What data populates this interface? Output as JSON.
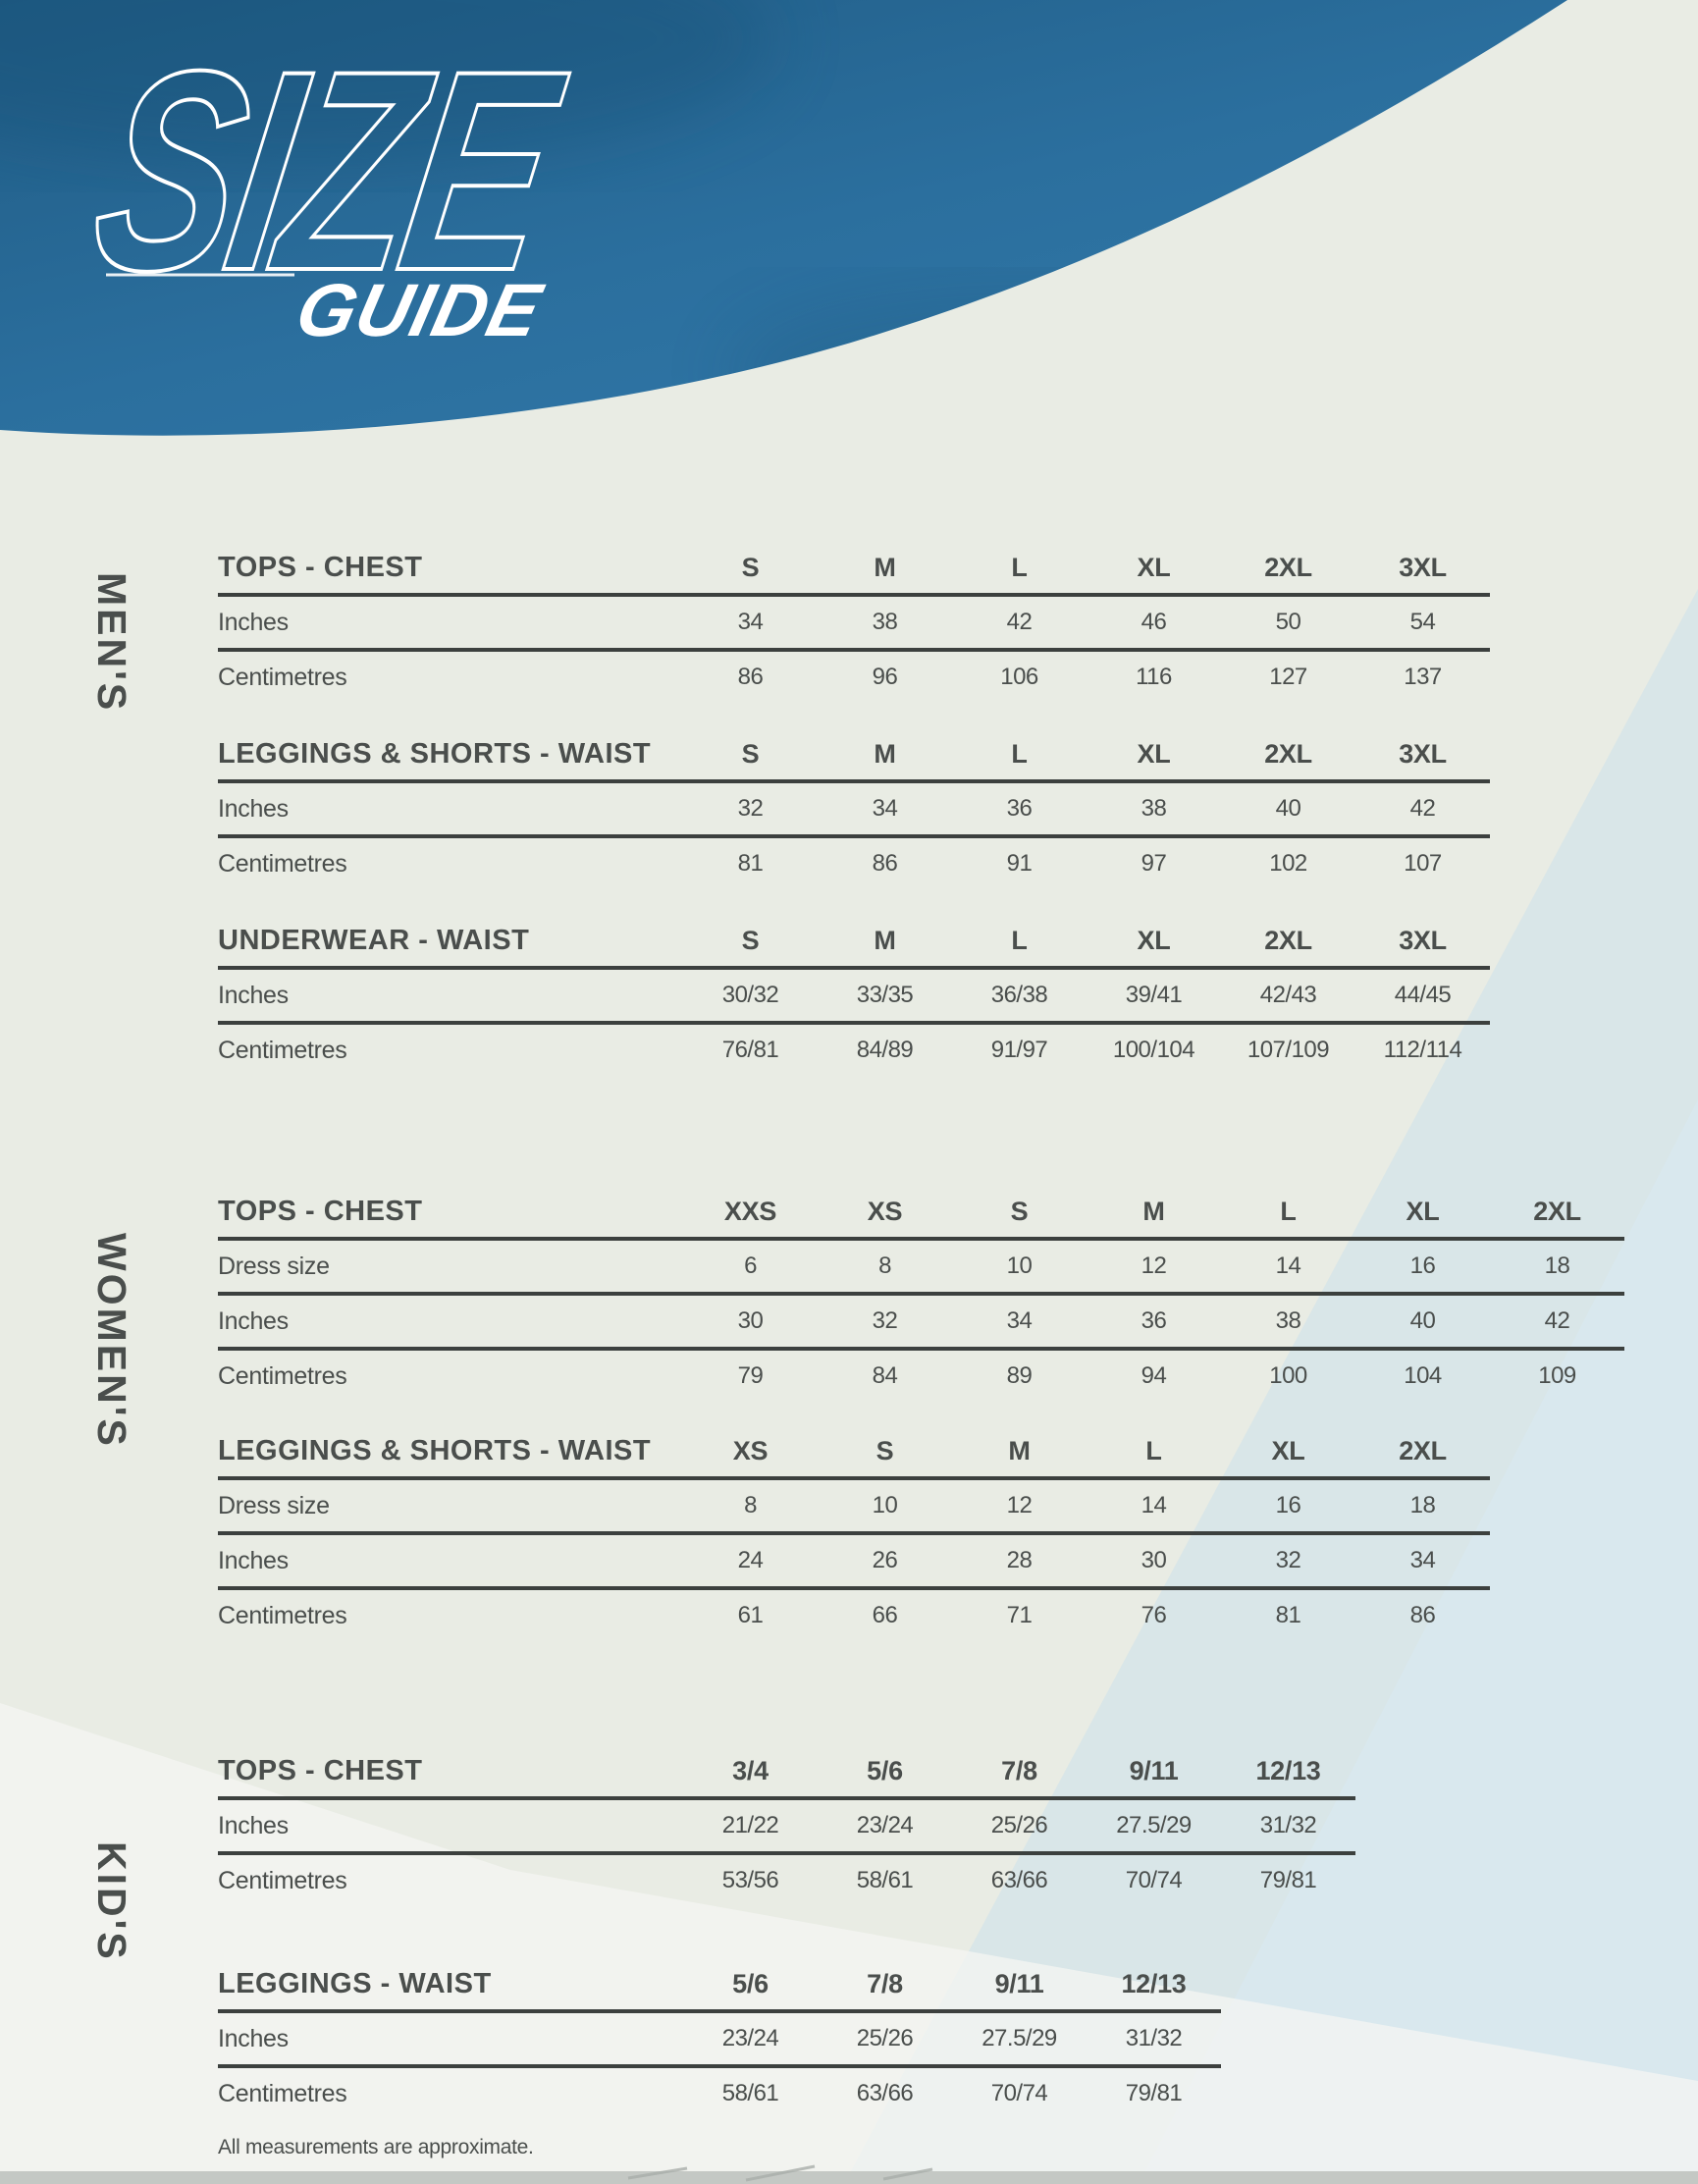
{
  "logo": {
    "size": "SIZE",
    "guide": "GUIDE"
  },
  "footnote": "All measurements are approximate.",
  "colors": {
    "header_blue_dark": "#205c85",
    "header_blue": "#2b6f9e",
    "header_blue_light": "#3178a8",
    "background": "#e9ece4",
    "text": "#4a4e4c",
    "rule": "#3c403e",
    "wedge_blue": "#c9dfeb",
    "wedge_blue_light": "#d9eaf2",
    "snow_white": "#f4f6f3",
    "bottom_bar": "#c4c8c4",
    "logo_white": "#ffffff"
  },
  "sections": [
    {
      "label": "MEN'S",
      "tables": [
        {
          "title": "TOPS - CHEST",
          "sizes": [
            "S",
            "M",
            "L",
            "XL",
            "2XL",
            "3XL"
          ],
          "rows": [
            {
              "label": "Inches",
              "values": [
                "34",
                "38",
                "42",
                "46",
                "50",
                "54"
              ]
            },
            {
              "label": "Centimetres",
              "values": [
                "86",
                "96",
                "106",
                "116",
                "127",
                "137"
              ]
            }
          ]
        },
        {
          "title": "LEGGINGS & SHORTS - WAIST",
          "sizes": [
            "S",
            "M",
            "L",
            "XL",
            "2XL",
            "3XL"
          ],
          "rows": [
            {
              "label": "Inches",
              "values": [
                "32",
                "34",
                "36",
                "38",
                "40",
                "42"
              ]
            },
            {
              "label": "Centimetres",
              "values": [
                "81",
                "86",
                "91",
                "97",
                "102",
                "107"
              ]
            }
          ]
        },
        {
          "title": "UNDERWEAR - WAIST",
          "sizes": [
            "S",
            "M",
            "L",
            "XL",
            "2XL",
            "3XL"
          ],
          "rows": [
            {
              "label": "Inches",
              "values": [
                "30/32",
                "33/35",
                "36/38",
                "39/41",
                "42/43",
                "44/45"
              ]
            },
            {
              "label": "Centimetres",
              "values": [
                "76/81",
                "84/89",
                "91/97",
                "100/104",
                "107/109",
                "112/114"
              ]
            }
          ]
        }
      ]
    },
    {
      "label": "WOMEN'S",
      "tables": [
        {
          "title": "TOPS - CHEST",
          "sizes": [
            "XXS",
            "XS",
            "S",
            "M",
            "L",
            "XL",
            "2XL"
          ],
          "rows": [
            {
              "label": "Dress size",
              "values": [
                "6",
                "8",
                "10",
                "12",
                "14",
                "16",
                "18"
              ]
            },
            {
              "label": "Inches",
              "values": [
                "30",
                "32",
                "34",
                "36",
                "38",
                "40",
                "42"
              ]
            },
            {
              "label": "Centimetres",
              "values": [
                "79",
                "84",
                "89",
                "94",
                "100",
                "104",
                "109"
              ]
            }
          ]
        },
        {
          "title": "LEGGINGS & SHORTS - WAIST",
          "sizes": [
            "XS",
            "S",
            "M",
            "L",
            "XL",
            "2XL"
          ],
          "rows": [
            {
              "label": "Dress size",
              "values": [
                "8",
                "10",
                "12",
                "14",
                "16",
                "18"
              ]
            },
            {
              "label": "Inches",
              "values": [
                "24",
                "26",
                "28",
                "30",
                "32",
                "34"
              ]
            },
            {
              "label": "Centimetres",
              "values": [
                "61",
                "66",
                "71",
                "76",
                "81",
                "86"
              ]
            }
          ]
        }
      ]
    },
    {
      "label": "KID'S",
      "tables": [
        {
          "title": "TOPS - CHEST",
          "sizes": [
            "3/4",
            "5/6",
            "7/8",
            "9/11",
            "12/13"
          ],
          "rows": [
            {
              "label": "Inches",
              "values": [
                "21/22",
                "23/24",
                "25/26",
                "27.5/29",
                "31/32"
              ]
            },
            {
              "label": "Centimetres",
              "values": [
                "53/56",
                "58/61",
                "63/66",
                "70/74",
                "79/81"
              ]
            }
          ]
        },
        {
          "title": "LEGGINGS - WAIST",
          "sizes": [
            "5/6",
            "7/8",
            "9/11",
            "12/13"
          ],
          "rows": [
            {
              "label": "Inches",
              "values": [
                "23/24",
                "25/26",
                "27.5/29",
                "31/32"
              ]
            },
            {
              "label": "Centimetres",
              "values": [
                "58/61",
                "63/66",
                "70/74",
                "79/81"
              ]
            }
          ]
        }
      ]
    }
  ]
}
